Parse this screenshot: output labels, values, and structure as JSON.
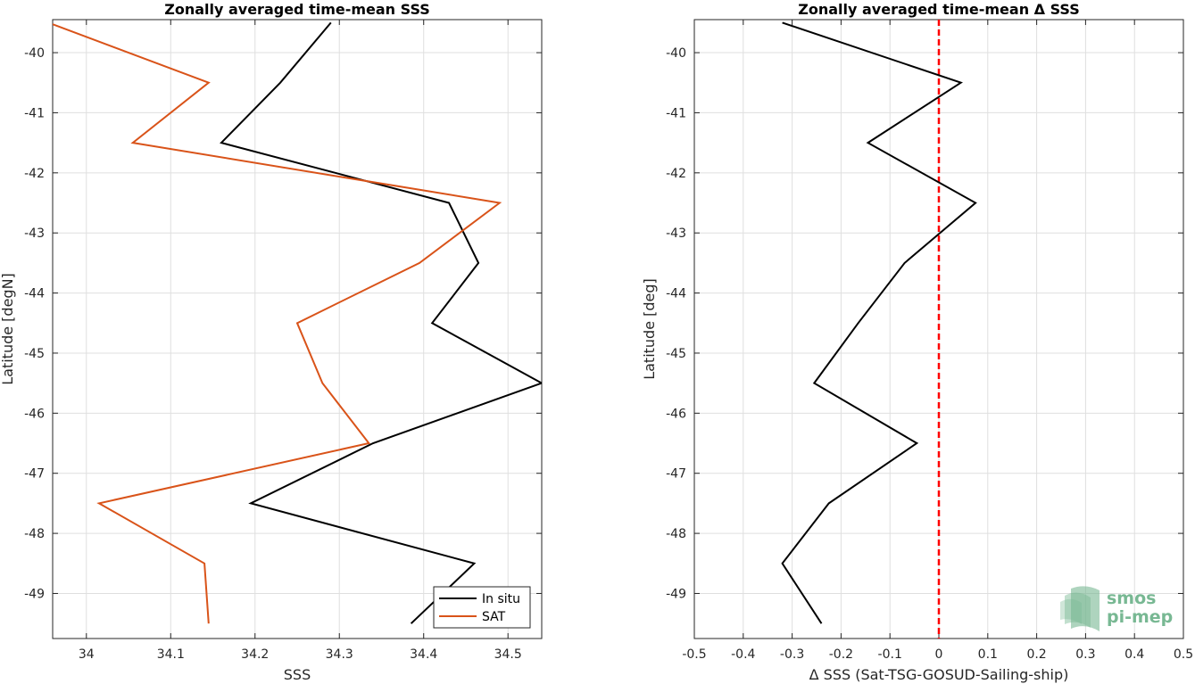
{
  "chart_data": [
    {
      "type": "line",
      "title": "Zonally averaged time-mean SSS",
      "xlabel": "SSS",
      "ylabel": "Latitude [degN]",
      "xlim": [
        33.96,
        34.54
      ],
      "ylim": [
        -49.75,
        -39.45
      ],
      "xticks": [
        34,
        34.1,
        34.2,
        34.3,
        34.4,
        34.5
      ],
      "xtick_labels": [
        "34",
        "34.1",
        "34.2",
        "34.3",
        "34.4",
        "34.5"
      ],
      "yticks": [
        -40,
        -41,
        -42,
        -43,
        -44,
        -45,
        -46,
        -47,
        -48,
        -49
      ],
      "ytick_labels": [
        "-40",
        "-41",
        "-42",
        "-43",
        "-44",
        "-45",
        "-46",
        "-47",
        "-48",
        "-49"
      ],
      "grid": true,
      "legend_position": "bottom-right",
      "y": [
        -39.5,
        -40.5,
        -41.5,
        -42.5,
        -43.5,
        -44.5,
        -45.5,
        -46.5,
        -47.5,
        -48.5,
        -49.5
      ],
      "series": [
        {
          "name": "In situ",
          "color": "#000000",
          "values": [
            34.29,
            34.23,
            34.16,
            34.43,
            34.465,
            34.41,
            34.54,
            34.34,
            34.195,
            34.46,
            34.385
          ]
        },
        {
          "name": "SAT",
          "color": "#d95319",
          "values": [
            33.955,
            34.145,
            34.055,
            34.49,
            34.395,
            34.25,
            34.28,
            34.335,
            34.015,
            34.14,
            34.145
          ]
        }
      ]
    },
    {
      "type": "line",
      "title": "Zonally averaged time-mean Δ SSS",
      "xlabel": "Δ SSS (Sat-TSG-GOSUD-Sailing-ship)",
      "ylabel": "Latitude [deg]",
      "xlim": [
        -0.5,
        0.5
      ],
      "ylim": [
        -49.75,
        -39.45
      ],
      "xticks": [
        -0.5,
        -0.4,
        -0.3,
        -0.2,
        -0.1,
        0,
        0.1,
        0.2,
        0.3,
        0.4,
        0.5
      ],
      "xtick_labels": [
        "-0.5",
        "-0.4",
        "-0.3",
        "-0.2",
        "-0.1",
        "0",
        "0.1",
        "0.2",
        "0.3",
        "0.4",
        "0.5"
      ],
      "yticks": [
        -40,
        -41,
        -42,
        -43,
        -44,
        -45,
        -46,
        -47,
        -48,
        -49
      ],
      "ytick_labels": [
        "-40",
        "-41",
        "-42",
        "-43",
        "-44",
        "-45",
        "-46",
        "-47",
        "-48",
        "-49"
      ],
      "grid": true,
      "reference_line": {
        "x": 0,
        "color": "#ff0000",
        "style": "dashed"
      },
      "y": [
        -39.5,
        -40.5,
        -41.5,
        -42.5,
        -43.5,
        -44.5,
        -45.5,
        -46.5,
        -47.5,
        -48.5,
        -49.5
      ],
      "series": [
        {
          "color": "#000000",
          "values": [
            -0.32,
            0.045,
            -0.145,
            0.075,
            -0.07,
            -0.165,
            -0.255,
            -0.045,
            -0.225,
            -0.32,
            -0.24
          ]
        }
      ]
    }
  ],
  "logo": {
    "line1": "smos",
    "line2": "pi-mep",
    "color": "#78b893"
  }
}
